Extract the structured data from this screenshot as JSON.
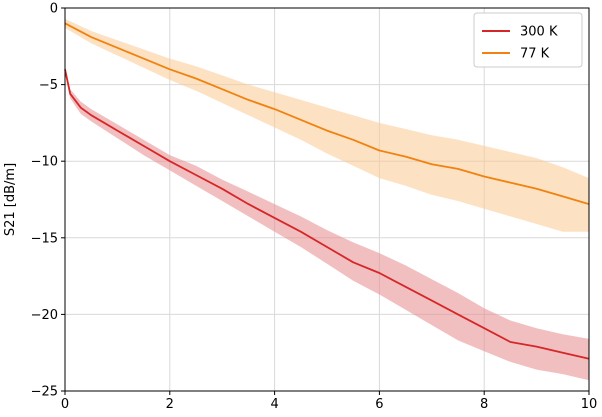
{
  "chart_data": {
    "type": "line",
    "title": "",
    "xlabel": "",
    "ylabel": "S21 [dB/m]",
    "xlim": [
      0,
      10
    ],
    "ylim": [
      -25,
      0
    ],
    "x_ticks": [
      0,
      2,
      4,
      6,
      8,
      10
    ],
    "y_ticks": [
      -25,
      -20,
      -15,
      -10,
      -5,
      0
    ],
    "grid": true,
    "legend_position": "top-right",
    "series": [
      {
        "name": "300 K",
        "color": "#d62728",
        "band_color": "#e88a8e",
        "x": [
          0,
          0.1,
          0.3,
          0.5,
          1,
          1.5,
          2,
          2.5,
          3,
          3.5,
          4,
          4.5,
          5,
          5.5,
          6,
          6.5,
          7,
          7.5,
          8,
          8.5,
          9,
          9.5,
          10
        ],
        "y": [
          -4.0,
          -5.6,
          -6.5,
          -7.0,
          -8.0,
          -9.0,
          -10.0,
          -10.9,
          -11.8,
          -12.8,
          -13.7,
          -14.6,
          -15.6,
          -16.6,
          -17.3,
          -18.2,
          -19.1,
          -20.0,
          -20.9,
          -21.8,
          -22.1,
          -22.5,
          -22.9
        ],
        "upper": [
          -3.8,
          -5.3,
          -6.1,
          -6.6,
          -7.6,
          -8.6,
          -9.6,
          -10.3,
          -11.2,
          -12.0,
          -12.8,
          -13.6,
          -14.5,
          -15.3,
          -16.0,
          -16.8,
          -17.7,
          -18.6,
          -19.6,
          -20.4,
          -20.9,
          -21.3,
          -21.6
        ],
        "lower": [
          -4.2,
          -5.9,
          -6.9,
          -7.4,
          -8.5,
          -9.6,
          -10.6,
          -11.6,
          -12.6,
          -13.6,
          -14.6,
          -15.6,
          -16.7,
          -17.8,
          -18.7,
          -19.7,
          -20.7,
          -21.7,
          -22.4,
          -23.1,
          -23.6,
          -23.9,
          -24.3
        ]
      },
      {
        "name": "77 K",
        "color": "#f0820f",
        "band_color": "#fcc891",
        "x": [
          0,
          0.5,
          1,
          1.5,
          2,
          2.5,
          3,
          3.5,
          4,
          4.5,
          5,
          5.5,
          6,
          6.5,
          7,
          7.5,
          8,
          8.5,
          9,
          9.5,
          10
        ],
        "y": [
          -1.0,
          -1.9,
          -2.6,
          -3.3,
          -4.0,
          -4.6,
          -5.3,
          -6.0,
          -6.6,
          -7.3,
          -8.0,
          -8.6,
          -9.3,
          -9.7,
          -10.2,
          -10.5,
          -11.0,
          -11.4,
          -11.8,
          -12.3,
          -12.8
        ],
        "upper": [
          -0.7,
          -1.5,
          -2.1,
          -2.7,
          -3.3,
          -3.8,
          -4.4,
          -5.0,
          -5.5,
          -6.0,
          -6.5,
          -7.0,
          -7.5,
          -7.9,
          -8.3,
          -8.6,
          -9.0,
          -9.4,
          -9.8,
          -10.4,
          -11.1
        ],
        "lower": [
          -1.3,
          -2.3,
          -3.1,
          -3.9,
          -4.7,
          -5.4,
          -6.2,
          -7.0,
          -7.8,
          -8.6,
          -9.5,
          -10.3,
          -11.1,
          -11.6,
          -12.2,
          -12.6,
          -13.1,
          -13.6,
          -14.1,
          -14.6,
          -14.6
        ]
      }
    ]
  }
}
